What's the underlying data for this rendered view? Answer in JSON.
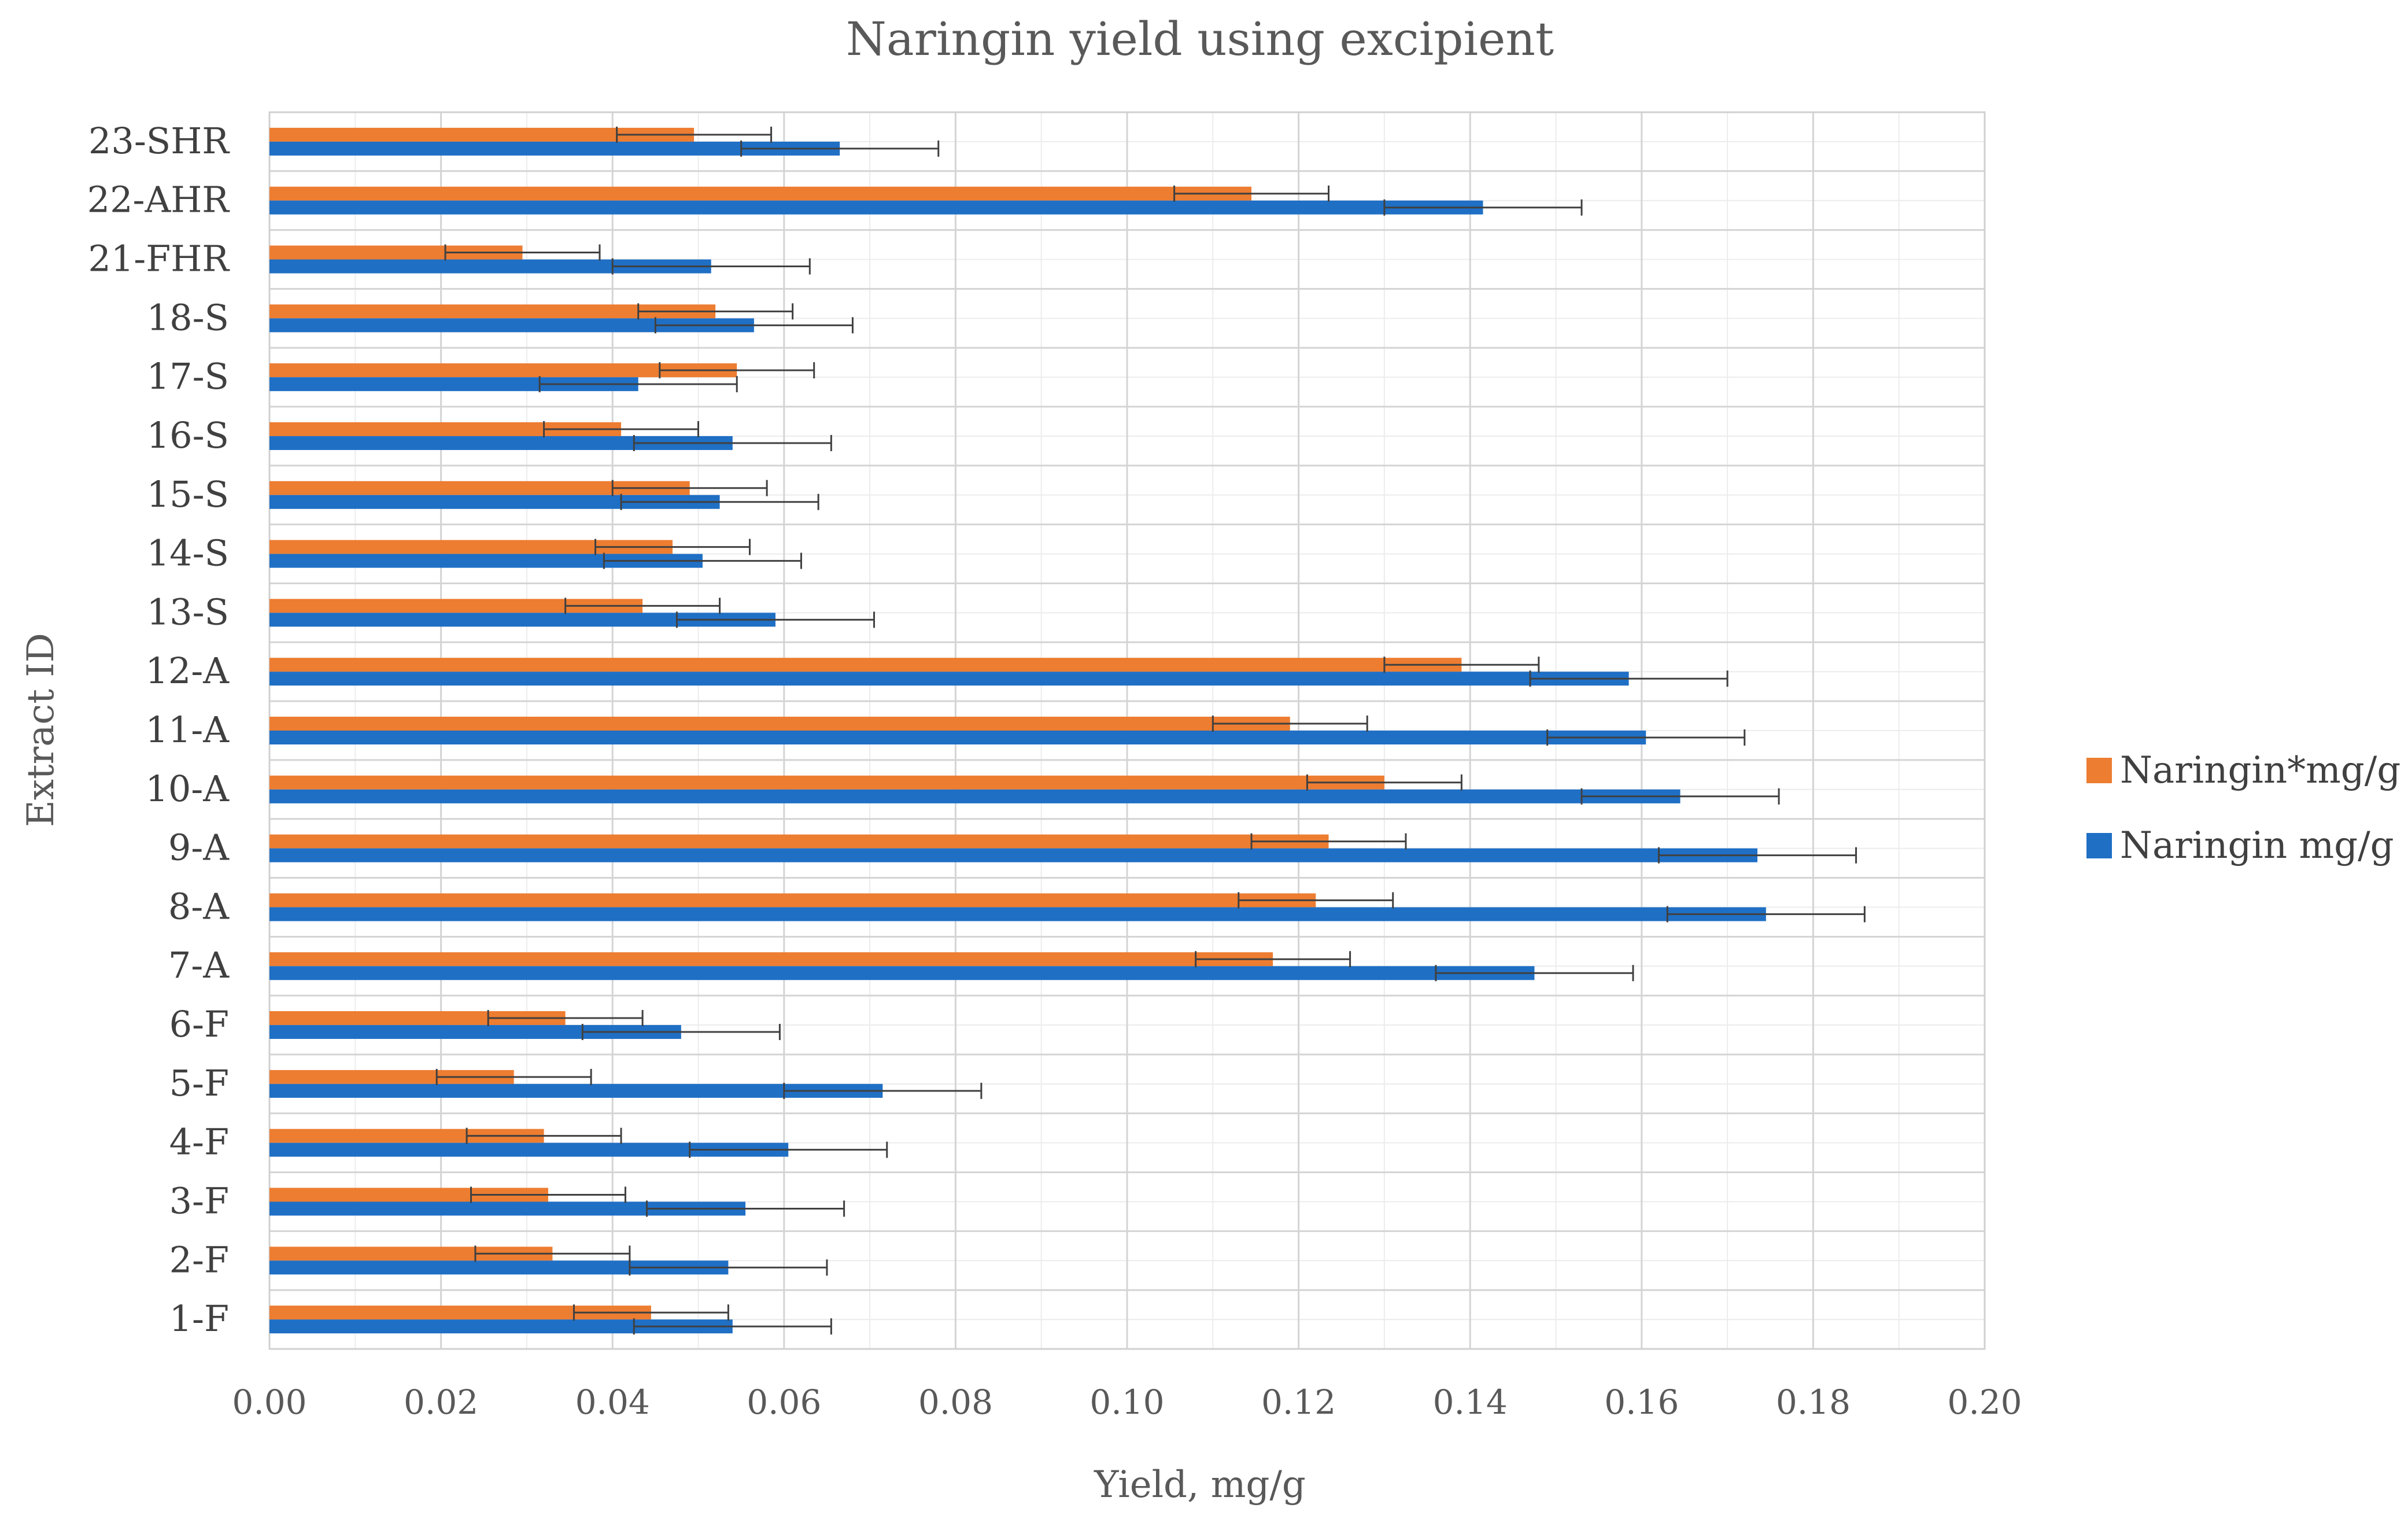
{
  "chart_data": {
    "type": "bar",
    "orientation": "horizontal",
    "title": "Naringin yield using excipient",
    "xlabel": "Yield, mg/g",
    "ylabel": "Extract ID",
    "xlim": [
      0,
      0.2
    ],
    "x_ticks": [
      "0.00",
      "0.02",
      "0.04",
      "0.06",
      "0.08",
      "0.10",
      "0.12",
      "0.14",
      "0.16",
      "0.18",
      "0.20"
    ],
    "x_major_step": 0.02,
    "x_minor_step": 0.01,
    "grid": true,
    "legend_position": "right",
    "categories": [
      "1-F",
      "2-F",
      "3-F",
      "4-F",
      "5-F",
      "6-F",
      "7-A",
      "8-A",
      "9-A",
      "10-A",
      "11-A",
      "12-A",
      "13-S",
      "14-S",
      "15-S",
      "16-S",
      "17-S",
      "18-S",
      "21-FHR",
      "22-AHR",
      "23-SHR"
    ],
    "series": [
      {
        "name": "Naringin*mg/g",
        "color": "#ED7D31",
        "values": [
          0.0445,
          0.033,
          0.0325,
          0.032,
          0.0285,
          0.0345,
          0.117,
          0.122,
          0.1235,
          0.13,
          0.119,
          0.139,
          0.0435,
          0.047,
          0.049,
          0.041,
          0.0545,
          0.052,
          0.0295,
          0.1145,
          0.0495
        ],
        "errors": [
          0.009,
          0.009,
          0.009,
          0.009,
          0.009,
          0.009,
          0.009,
          0.009,
          0.009,
          0.009,
          0.009,
          0.009,
          0.009,
          0.009,
          0.009,
          0.009,
          0.009,
          0.009,
          0.009,
          0.009,
          0.009
        ]
      },
      {
        "name": "Naringin mg/g",
        "color": "#1F6FC5",
        "values": [
          0.054,
          0.0535,
          0.0555,
          0.0605,
          0.0715,
          0.048,
          0.1475,
          0.1745,
          0.1735,
          0.1645,
          0.1605,
          0.1585,
          0.059,
          0.0505,
          0.0525,
          0.054,
          0.043,
          0.0565,
          0.0515,
          0.1415,
          0.0665
        ],
        "errors": [
          0.0115,
          0.0115,
          0.0115,
          0.0115,
          0.0115,
          0.0115,
          0.0115,
          0.0115,
          0.0115,
          0.0115,
          0.0115,
          0.0115,
          0.0115,
          0.0115,
          0.0115,
          0.0115,
          0.0115,
          0.0115,
          0.0115,
          0.0115,
          0.0115
        ]
      }
    ]
  }
}
